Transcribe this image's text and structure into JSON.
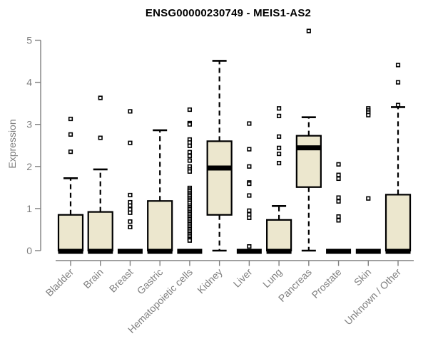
{
  "chart_data": {
    "type": "boxplot",
    "title": "ENSG00000230749 - MEIS1-AS2",
    "ylabel": "Expression",
    "xlabel": "",
    "ylim": [
      0,
      5
    ],
    "yticks": [
      0,
      1,
      2,
      3,
      4,
      5
    ],
    "grid": false,
    "legend": "none",
    "box_fill_color": "#ECE7CE",
    "box_border_color": "#000000",
    "axis_color": "#808080",
    "label_color": "#7f7f7f",
    "title_color": "#000000",
    "categories": [
      "Bladder",
      "Brain",
      "Breast",
      "Gastric",
      "Hematopoietic cells",
      "Kidney",
      "Liver",
      "Lung",
      "Pancreas",
      "Prostate",
      "Skin",
      "Unknown / Other"
    ],
    "boxes": [
      {
        "label": "Bladder",
        "q1": 0,
        "median": 0,
        "q3": 0.85,
        "whisker_low": 0,
        "whisker_high": 1.72,
        "outliers": [
          2.35,
          2.76,
          3.13
        ]
      },
      {
        "label": "Brain",
        "q1": 0,
        "median": 0,
        "q3": 0.92,
        "whisker_low": 0,
        "whisker_high": 1.93,
        "outliers": [
          2.68,
          3.63
        ]
      },
      {
        "label": "Breast",
        "q1": 0,
        "median": 0,
        "q3": 0,
        "whisker_low": 0,
        "whisker_high": 0,
        "outliers": [
          3.31,
          2.56,
          1.32,
          1.15,
          1.07,
          0.98,
          0.9,
          0.69,
          0.56
        ]
      },
      {
        "label": "Gastric",
        "q1": 0,
        "median": 0,
        "q3": 1.18,
        "whisker_low": 0,
        "whisker_high": 2.86,
        "outliers": []
      },
      {
        "label": "Hematopoietic cells",
        "q1": 0,
        "median": 0,
        "q3": 0,
        "whisker_low": 0,
        "whisker_high": 0,
        "outliers": [
          3.35,
          3.03,
          3.0,
          2.64,
          2.57,
          2.49,
          2.34,
          2.25,
          2.14,
          2.0,
          1.93,
          1.88,
          1.49,
          1.45,
          1.41,
          1.37,
          1.33,
          1.29,
          1.25,
          1.21,
          1.17,
          1.13,
          1.07,
          1.03,
          0.99,
          0.95,
          0.91,
          0.87,
          0.83,
          0.79,
          0.75,
          0.71,
          0.67,
          0.63,
          0.59,
          0.55,
          0.51,
          0.47,
          0.43,
          0.39,
          0.35,
          0.31,
          0.27,
          0.24
        ]
      },
      {
        "label": "Kidney",
        "q1": 0.85,
        "median": 1.98,
        "q3": 2.6,
        "whisker_low": 0,
        "whisker_high": 4.51,
        "outliers": []
      },
      {
        "label": "Liver",
        "q1": 0,
        "median": 0,
        "q3": 0,
        "whisker_low": 0,
        "whisker_high": 0,
        "outliers": [
          3.02,
          2.41,
          2.0,
          1.62,
          1.59,
          1.31,
          0.95,
          0.86,
          0.78,
          0.1
        ]
      },
      {
        "label": "Lung",
        "q1": 0,
        "median": 0,
        "q3": 0.73,
        "whisker_low": 0,
        "whisker_high": 1.06,
        "outliers": [
          3.38,
          3.2,
          2.71,
          2.44,
          2.3,
          2.08
        ]
      },
      {
        "label": "Pancreas",
        "q1": 1.51,
        "median": 2.46,
        "q3": 2.73,
        "whisker_low": 0,
        "whisker_high": 3.17,
        "outliers": [
          5.22
        ]
      },
      {
        "label": "Prostate",
        "q1": 0,
        "median": 0,
        "q3": 0,
        "whisker_low": 0,
        "whisker_high": 0,
        "outliers": [
          2.05,
          1.8,
          1.71,
          1.26,
          1.17,
          0.81,
          0.72
        ]
      },
      {
        "label": "Skin",
        "q1": 0,
        "median": 0,
        "q3": 0,
        "whisker_low": 0,
        "whisker_high": 0,
        "outliers": [
          3.38,
          3.33,
          3.28,
          3.22,
          1.24
        ]
      },
      {
        "label": "Unknown / Other",
        "q1": 0,
        "median": 0,
        "q3": 1.33,
        "whisker_low": 0,
        "whisker_high": 3.41,
        "outliers": [
          4.41,
          4.0,
          3.46
        ]
      }
    ]
  }
}
